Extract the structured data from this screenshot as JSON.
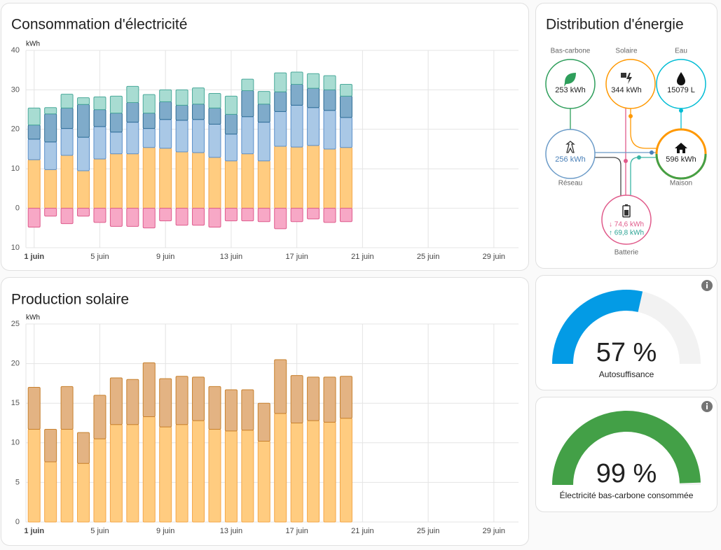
{
  "chart_data": [
    {
      "type": "bar",
      "stacked": true,
      "title": "Consommation d'électricité",
      "y_unit": "kWh",
      "categories": [
        "1 juin",
        null,
        null,
        null,
        "5 juin",
        null,
        null,
        null,
        "9 juin",
        null,
        null,
        null,
        "13 juin",
        null,
        null,
        null,
        "17 juin",
        null,
        null,
        null,
        "21 juin",
        null,
        null,
        null,
        "25 juin",
        null,
        null,
        null,
        "29 juin",
        null
      ],
      "series": [
        {
          "color": "#f4a74a",
          "fill": "#ffcc80",
          "values": [
            12.3,
            9.8,
            13.4,
            9.5,
            12.5,
            13.8,
            13.8,
            15.4,
            15.2,
            14.3,
            14.1,
            12.9,
            12.0,
            13.8,
            12.0,
            15.7,
            15.5,
            15.9,
            15.0,
            15.4,
            null,
            null,
            null,
            null,
            null,
            null,
            null,
            null,
            null,
            null
          ]
        },
        {
          "color": "#5b8fc9",
          "fill": "#a9c8e6",
          "values": [
            5.2,
            7.0,
            6.8,
            8.5,
            8.2,
            5.5,
            8.0,
            4.8,
            7.3,
            8.0,
            8.4,
            8.4,
            6.8,
            9.4,
            9.8,
            8.8,
            10.6,
            9.6,
            9.8,
            7.6,
            null,
            null,
            null,
            null,
            null,
            null,
            null,
            null,
            null,
            null
          ]
        },
        {
          "color": "#2f6d96",
          "fill": "#7fabca",
          "values": [
            3.6,
            7.1,
            5.2,
            8.3,
            4.3,
            4.8,
            5.0,
            3.9,
            4.5,
            3.8,
            3.9,
            4.1,
            5.0,
            6.6,
            4.6,
            5.0,
            5.3,
            4.9,
            5.2,
            5.4,
            null,
            null,
            null,
            null,
            null,
            null,
            null,
            null,
            null,
            null
          ]
        },
        {
          "color": "#4aa99a",
          "fill": "#a8dcd2",
          "values": [
            4.3,
            1.6,
            3.5,
            1.7,
            3.2,
            4.3,
            4.1,
            4.7,
            3.0,
            3.9,
            4.1,
            3.7,
            4.6,
            2.9,
            3.2,
            4.8,
            3.1,
            3.7,
            3.6,
            3.0,
            null,
            null,
            null,
            null,
            null,
            null,
            null,
            null,
            null,
            null
          ]
        },
        {
          "color": "#de5b8d",
          "fill": "#f7a8c6",
          "values": [
            -4.8,
            -2.0,
            -3.9,
            -2.0,
            -3.6,
            -4.6,
            -4.6,
            -5.0,
            -3.2,
            -4.3,
            -4.3,
            -4.8,
            -3.2,
            -3.2,
            -3.4,
            -5.2,
            -3.4,
            -2.7,
            -3.6,
            -3.4,
            null,
            null,
            null,
            null,
            null,
            null,
            null,
            null,
            null,
            null
          ]
        }
      ],
      "ylim": [
        -10,
        40
      ],
      "yticks": [
        {
          "value": -10,
          "label": "10"
        },
        0,
        10,
        20,
        30,
        40
      ],
      "grid": true
    },
    {
      "type": "bar",
      "stacked": true,
      "title": "Production solaire",
      "y_unit": "kWh",
      "categories": [
        "1 juin",
        null,
        null,
        null,
        "5 juin",
        null,
        null,
        null,
        "9 juin",
        null,
        null,
        null,
        "13 juin",
        null,
        null,
        null,
        "17 juin",
        null,
        null,
        null,
        "21 juin",
        null,
        null,
        null,
        "25 juin",
        null,
        null,
        null,
        "29 juin",
        null
      ],
      "series": [
        {
          "color": "#f4a74a",
          "fill": "#ffcc80",
          "values": [
            11.7,
            7.6,
            11.7,
            7.4,
            10.5,
            12.3,
            12.3,
            13.3,
            12.0,
            12.3,
            12.8,
            11.7,
            11.5,
            11.6,
            10.2,
            13.7,
            12.5,
            12.8,
            12.6,
            13.1,
            null,
            null,
            null,
            null,
            null,
            null,
            null,
            null,
            null,
            null
          ]
        },
        {
          "color": "#c7812f",
          "fill": "#e3b383",
          "values": [
            5.3,
            4.1,
            5.4,
            3.9,
            5.5,
            5.9,
            5.7,
            6.8,
            6.1,
            6.1,
            5.5,
            5.4,
            5.2,
            5.1,
            4.8,
            6.8,
            6.0,
            5.5,
            5.7,
            5.3,
            null,
            null,
            null,
            null,
            null,
            null,
            null,
            null,
            null,
            null
          ]
        }
      ],
      "ylim": [
        0,
        25
      ],
      "yticks": [
        0,
        5,
        10,
        15,
        20,
        25
      ],
      "grid": true
    }
  ],
  "distribution": {
    "title": "Distribution d'énergie",
    "nodes": [
      {
        "label": "Bas-carbone",
        "value": "253 kWh"
      },
      {
        "label": "Solaire",
        "value": "344 kWh"
      },
      {
        "label": "Eau",
        "value": "15079 L"
      },
      {
        "label": "Réseau",
        "value": "256 kWh"
      },
      {
        "label": "Maison",
        "value": "596 kWh"
      },
      {
        "label": "Batterie",
        "in": "↓ 74,6 kWh",
        "out": "↑ 69,8 kWh"
      }
    ]
  },
  "gauges": [
    {
      "value": 57,
      "label": "57 %",
      "title": "Autosuffisance",
      "range": [
        0,
        100
      ],
      "color": "#039be5"
    },
    {
      "value": 99,
      "label": "99 %",
      "title": "Électricité bas-carbone consommée",
      "range": [
        0,
        100
      ],
      "color": "#43a047"
    }
  ]
}
